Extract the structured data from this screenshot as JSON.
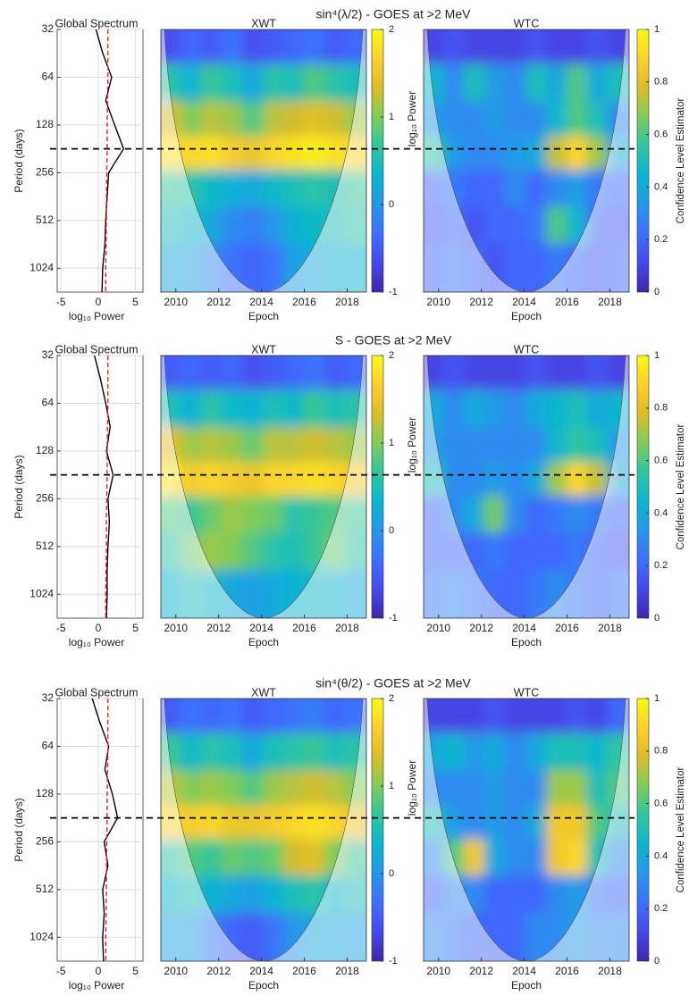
{
  "chart_data": [
    {
      "type": "wavelet",
      "title": "sin⁴(λ/2) - GOES at >2 MeV",
      "reference_period": 181,
      "spectrum": {
        "title": "Global Spectrum",
        "ylabel": "Period (days)",
        "xlabel": "log₁₀ Power",
        "xlim": [
          -5.5,
          6
        ],
        "xticks": [
          -5,
          0,
          5
        ],
        "ylim": [
          32,
          1448
        ],
        "yticks": [
          32,
          64,
          128,
          256,
          512,
          1024
        ],
        "log_base": 2,
        "grid": true,
        "periods": [
          32,
          45,
          64,
          90,
          128,
          181,
          256,
          362,
          512,
          724,
          1024,
          1448
        ],
        "series": [
          {
            "color": "#000000",
            "values": [
              -0.3,
              0.6,
              1.8,
              1.0,
              2.2,
              3.4,
              1.4,
              1.2,
              1.0,
              0.9,
              0.6,
              0.5
            ]
          },
          {
            "color": "#e8242a",
            "dashed": true,
            "values": [
              1.3,
              1.3,
              1.3,
              1.25,
              1.2,
              1.2,
              1.15,
              1.1,
              1.1,
              1.05,
              1.0,
              1.0
            ]
          }
        ]
      },
      "xwt": {
        "title": "XWT",
        "xlabel": "Epoch",
        "xlim": [
          2009.3,
          2018.9
        ],
        "xticks": [
          2010,
          2012,
          2014,
          2016,
          2018
        ],
        "epochs": [
          2009.8,
          2010.7,
          2011.7,
          2012.6,
          2013.6,
          2014.6,
          2015.5,
          2016.5,
          2017.4,
          2018.4
        ],
        "periods": [
          40,
          70,
          120,
          190,
          320,
          550,
          950
        ],
        "z": [
          [
            -0.6,
            -0.4,
            -0.5,
            -0.3,
            -0.6,
            -0.5,
            -0.4,
            -0.3,
            -0.5,
            -0.4
          ],
          [
            0.6,
            0.3,
            0.7,
            0.5,
            0.2,
            0.6,
            0.5,
            0.8,
            0.6,
            0.5
          ],
          [
            1.3,
            1.0,
            1.2,
            1.1,
            0.8,
            1.2,
            1.3,
            1.4,
            1.3,
            1.1
          ],
          [
            1.8,
            1.7,
            1.8,
            1.6,
            1.5,
            1.7,
            1.8,
            1.9,
            1.8,
            1.7
          ],
          [
            0.7,
            0.6,
            0.4,
            0.3,
            0.2,
            0.4,
            0.5,
            0.6,
            0.5,
            0.7
          ],
          [
            0.5,
            0.4,
            0.2,
            -0.1,
            -0.2,
            0.0,
            0.3,
            0.4,
            0.5,
            0.6
          ],
          [
            0.2,
            0.1,
            -0.1,
            -0.3,
            -0.4,
            -0.3,
            0.1,
            0.2,
            0.3,
            0.3
          ]
        ],
        "zlim": [
          -1,
          2
        ],
        "cticks": [
          -1,
          0,
          1,
          2
        ],
        "clabel": "log₁₀ Power"
      },
      "wtc": {
        "title": "WTC",
        "xlabel": "Epoch",
        "xlim": [
          2009.3,
          2018.9
        ],
        "xticks": [
          2010,
          2012,
          2014,
          2016,
          2018
        ],
        "epochs": [
          2009.8,
          2010.7,
          2011.7,
          2012.6,
          2013.6,
          2014.6,
          2015.5,
          2016.5,
          2017.4,
          2018.4
        ],
        "periods": [
          40,
          70,
          120,
          190,
          320,
          550,
          950
        ],
        "z": [
          [
            0.1,
            0.15,
            0.1,
            0.1,
            0.1,
            0.15,
            0.1,
            0.1,
            0.15,
            0.1
          ],
          [
            0.45,
            0.3,
            0.5,
            0.35,
            0.3,
            0.5,
            0.4,
            0.6,
            0.4,
            0.5
          ],
          [
            0.35,
            0.3,
            0.3,
            0.35,
            0.3,
            0.3,
            0.45,
            0.6,
            0.5,
            0.3
          ],
          [
            0.55,
            0.35,
            0.3,
            0.3,
            0.35,
            0.4,
            0.75,
            0.9,
            0.7,
            0.4
          ],
          [
            0.2,
            0.25,
            0.2,
            0.2,
            0.3,
            0.2,
            0.3,
            0.35,
            0.25,
            0.2
          ],
          [
            0.15,
            0.2,
            0.15,
            0.2,
            0.2,
            0.25,
            0.6,
            0.45,
            0.2,
            0.15
          ],
          [
            0.2,
            0.25,
            0.2,
            0.15,
            0.2,
            0.2,
            0.25,
            0.2,
            0.15,
            0.2
          ]
        ],
        "zlim": [
          0,
          1
        ],
        "cticks": [
          0,
          0.2,
          0.4,
          0.6,
          0.8,
          1
        ],
        "clabel": "Confidence Level Estimator"
      }
    },
    {
      "type": "wavelet",
      "title": "S - GOES at >2 MeV",
      "reference_period": 181,
      "spectrum": {
        "title": "Global Spectrum",
        "ylabel": "Period (days)",
        "xlabel": "log₁₀ Power",
        "xlim": [
          -5.5,
          6
        ],
        "xticks": [
          -5,
          0,
          5
        ],
        "ylim": [
          32,
          1448
        ],
        "yticks": [
          32,
          64,
          128,
          256,
          512,
          1024
        ],
        "log_base": 2,
        "grid": true,
        "periods": [
          32,
          45,
          64,
          90,
          128,
          181,
          256,
          362,
          512,
          724,
          1024,
          1448
        ],
        "series": [
          {
            "color": "#000000",
            "values": [
              -0.5,
              0.3,
              1.0,
              1.6,
              1.1,
              2.0,
              1.3,
              1.5,
              1.3,
              1.2,
              1.2,
              1.1
            ]
          },
          {
            "color": "#e8242a",
            "dashed": true,
            "values": [
              1.3,
              1.3,
              1.3,
              1.25,
              1.2,
              1.2,
              1.15,
              1.1,
              1.1,
              1.05,
              1.0,
              1.0
            ]
          }
        ]
      },
      "xwt": {
        "title": "XWT",
        "xlabel": "Epoch",
        "xlim": [
          2009.3,
          2018.9
        ],
        "xticks": [
          2010,
          2012,
          2014,
          2016,
          2018
        ],
        "epochs": [
          2009.8,
          2010.7,
          2011.7,
          2012.6,
          2013.6,
          2014.6,
          2015.5,
          2016.5,
          2017.4,
          2018.4
        ],
        "periods": [
          40,
          70,
          120,
          190,
          320,
          550,
          950
        ],
        "z": [
          [
            -0.5,
            -0.4,
            -0.5,
            -0.4,
            -0.6,
            -0.5,
            -0.4,
            -0.3,
            -0.5,
            -0.4
          ],
          [
            0.5,
            0.3,
            0.6,
            0.4,
            0.3,
            0.5,
            0.4,
            0.7,
            0.5,
            0.6
          ],
          [
            1.4,
            1.1,
            1.2,
            1.1,
            0.9,
            1.2,
            1.2,
            1.3,
            1.2,
            1.1
          ],
          [
            1.8,
            1.6,
            1.7,
            1.6,
            1.5,
            1.7,
            1.7,
            1.8,
            1.7,
            1.6
          ],
          [
            0.8,
            0.7,
            0.9,
            1.1,
            1.0,
            0.9,
            0.6,
            0.7,
            0.8,
            0.7
          ],
          [
            0.6,
            0.9,
            1.1,
            1.0,
            0.8,
            0.6,
            0.5,
            0.7,
            0.9,
            0.6
          ],
          [
            0.3,
            0.5,
            0.4,
            0.2,
            0.1,
            0.2,
            0.3,
            0.4,
            0.3,
            0.2
          ]
        ],
        "zlim": [
          -1,
          2
        ],
        "cticks": [
          -1,
          0,
          1,
          2
        ],
        "clabel": "log₁₀ Power"
      },
      "wtc": {
        "title": "WTC",
        "xlabel": "Epoch",
        "xlim": [
          2009.3,
          2018.9
        ],
        "xticks": [
          2010,
          2012,
          2014,
          2016,
          2018
        ],
        "epochs": [
          2009.8,
          2010.7,
          2011.7,
          2012.6,
          2013.6,
          2014.6,
          2015.5,
          2016.5,
          2017.4,
          2018.4
        ],
        "periods": [
          40,
          70,
          120,
          190,
          320,
          550,
          950
        ],
        "z": [
          [
            0.1,
            0.15,
            0.1,
            0.1,
            0.1,
            0.15,
            0.1,
            0.1,
            0.15,
            0.1
          ],
          [
            0.4,
            0.3,
            0.4,
            0.35,
            0.3,
            0.4,
            0.45,
            0.5,
            0.4,
            0.45
          ],
          [
            0.35,
            0.3,
            0.3,
            0.3,
            0.3,
            0.3,
            0.45,
            0.55,
            0.5,
            0.35
          ],
          [
            0.5,
            0.3,
            0.3,
            0.35,
            0.3,
            0.4,
            0.7,
            0.9,
            0.75,
            0.4
          ],
          [
            0.2,
            0.3,
            0.4,
            0.65,
            0.3,
            0.2,
            0.25,
            0.3,
            0.25,
            0.2
          ],
          [
            0.2,
            0.2,
            0.2,
            0.25,
            0.2,
            0.2,
            0.2,
            0.25,
            0.2,
            0.15
          ],
          [
            0.25,
            0.3,
            0.25,
            0.2,
            0.2,
            0.25,
            0.3,
            0.25,
            0.2,
            0.25
          ]
        ],
        "zlim": [
          0,
          1
        ],
        "cticks": [
          0,
          0.2,
          0.4,
          0.6,
          0.8,
          1
        ],
        "clabel": "Confidence Level Estimator"
      }
    },
    {
      "type": "wavelet",
      "title": "sin⁴(θ/2) - GOES at >2 MeV",
      "reference_period": 181,
      "spectrum": {
        "title": "Global Spectrum",
        "ylabel": "Period (days)",
        "xlabel": "log₁₀ Power",
        "xlim": [
          -5.5,
          6
        ],
        "xticks": [
          -5,
          0,
          5
        ],
        "ylim": [
          32,
          1448
        ],
        "yticks": [
          32,
          64,
          128,
          256,
          512,
          1024
        ],
        "log_base": 2,
        "grid": true,
        "periods": [
          32,
          45,
          64,
          90,
          128,
          181,
          256,
          362,
          512,
          724,
          1024,
          1448
        ],
        "series": [
          {
            "color": "#000000",
            "values": [
              -0.8,
              0.2,
              1.4,
              0.9,
              1.9,
              2.6,
              0.8,
              1.3,
              0.6,
              0.8,
              0.6,
              0.7
            ]
          },
          {
            "color": "#e8242a",
            "dashed": true,
            "values": [
              1.3,
              1.3,
              1.3,
              1.25,
              1.2,
              1.2,
              1.15,
              1.1,
              1.1,
              1.05,
              1.0,
              1.0
            ]
          }
        ]
      },
      "xwt": {
        "title": "XWT",
        "xlabel": "Epoch",
        "xlim": [
          2009.3,
          2018.9
        ],
        "xticks": [
          2010,
          2012,
          2014,
          2016,
          2018
        ],
        "epochs": [
          2009.8,
          2010.7,
          2011.7,
          2012.6,
          2013.6,
          2014.6,
          2015.5,
          2016.5,
          2017.4,
          2018.4
        ],
        "periods": [
          40,
          70,
          120,
          190,
          320,
          550,
          950
        ],
        "z": [
          [
            -0.5,
            -0.3,
            -0.4,
            -0.3,
            -0.5,
            -0.4,
            -0.3,
            -0.2,
            -0.4,
            -0.3
          ],
          [
            0.7,
            0.4,
            0.6,
            0.5,
            0.2,
            0.5,
            0.6,
            0.7,
            0.5,
            0.6
          ],
          [
            1.2,
            1.0,
            1.1,
            1.0,
            0.8,
            1.1,
            1.2,
            1.3,
            1.2,
            1.0
          ],
          [
            1.7,
            1.6,
            1.7,
            1.5,
            1.5,
            1.6,
            1.7,
            1.8,
            1.7,
            1.5
          ],
          [
            0.6,
            0.8,
            0.7,
            0.9,
            0.8,
            0.9,
            1.3,
            1.4,
            1.0,
            0.7
          ],
          [
            0.4,
            0.5,
            0.3,
            0.2,
            0.1,
            0.3,
            0.5,
            0.6,
            0.4,
            0.5
          ],
          [
            0.1,
            0.1,
            -0.2,
            -0.4,
            -0.5,
            -0.3,
            0.0,
            0.2,
            0.2,
            0.1
          ]
        ],
        "zlim": [
          -1,
          2
        ],
        "cticks": [
          -1,
          0,
          1,
          2
        ],
        "clabel": "log₁₀ Power"
      },
      "wtc": {
        "title": "WTC",
        "xlabel": "Epoch",
        "xlim": [
          2009.3,
          2018.9
        ],
        "xticks": [
          2010,
          2012,
          2014,
          2016,
          2018
        ],
        "epochs": [
          2009.8,
          2010.7,
          2011.7,
          2012.6,
          2013.6,
          2014.6,
          2015.5,
          2016.5,
          2017.4,
          2018.4
        ],
        "periods": [
          40,
          70,
          120,
          190,
          320,
          550,
          950
        ],
        "z": [
          [
            0.1,
            0.1,
            0.1,
            0.15,
            0.1,
            0.1,
            0.1,
            0.15,
            0.1,
            0.2
          ],
          [
            0.4,
            0.45,
            0.35,
            0.4,
            0.3,
            0.4,
            0.5,
            0.5,
            0.45,
            0.55
          ],
          [
            0.3,
            0.3,
            0.3,
            0.35,
            0.3,
            0.3,
            0.7,
            0.7,
            0.5,
            0.6
          ],
          [
            0.5,
            0.35,
            0.3,
            0.35,
            0.3,
            0.4,
            0.85,
            0.85,
            0.6,
            0.5
          ],
          [
            0.3,
            0.6,
            0.85,
            0.4,
            0.3,
            0.3,
            0.85,
            0.9,
            0.5,
            0.3
          ],
          [
            0.2,
            0.3,
            0.3,
            0.2,
            0.2,
            0.2,
            0.3,
            0.35,
            0.25,
            0.2
          ],
          [
            0.3,
            0.25,
            0.2,
            0.2,
            0.2,
            0.3,
            0.3,
            0.35,
            0.3,
            0.3
          ]
        ],
        "zlim": [
          0,
          1
        ],
        "cticks": [
          0,
          0.2,
          0.4,
          0.6,
          0.8,
          1
        ],
        "clabel": "Confidence Level Estimator"
      }
    }
  ]
}
